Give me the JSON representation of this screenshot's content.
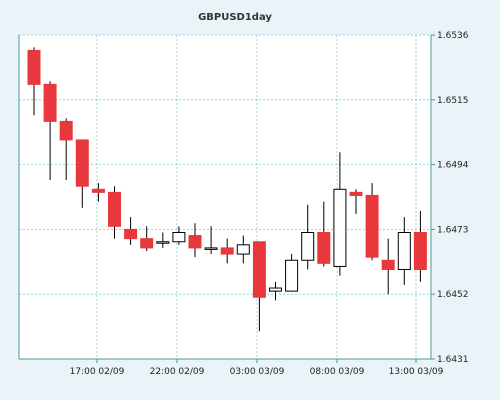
{
  "chart_data": {
    "type": "candlestick",
    "title": "GBPUSD1day",
    "y_axis_position": "right",
    "ylim": [
      1.6431,
      1.6536
    ],
    "y_ticks": [
      "1.6536",
      "1.6515",
      "1.6494",
      "1.6473",
      "1.6452",
      "1.6431"
    ],
    "x_ticks": [
      "17:00 02/09",
      "22:00 02/09",
      "03:00 03/09",
      "08:00 03/09",
      "13:00 03/09"
    ],
    "grid": true,
    "colors": {
      "up": "#ffffff",
      "down": "#e8383d",
      "grid": "#7fcac8",
      "background": "#ffffff",
      "axis": "#4a9a98"
    },
    "candles": [
      {
        "open": 1.6531,
        "high": 1.6532,
        "low": 1.651,
        "close": 1.652
      },
      {
        "open": 1.652,
        "high": 1.6521,
        "low": 1.6489,
        "close": 1.6508
      },
      {
        "open": 1.6508,
        "high": 1.6509,
        "low": 1.6489,
        "close": 1.6502
      },
      {
        "open": 1.6502,
        "high": 1.6502,
        "low": 1.648,
        "close": 1.6487
      },
      {
        "open": 1.6486,
        "high": 1.6488,
        "low": 1.6482,
        "close": 1.6485
      },
      {
        "open": 1.6485,
        "high": 1.6487,
        "low": 1.647,
        "close": 1.6474
      },
      {
        "open": 1.6473,
        "high": 1.6477,
        "low": 1.6468,
        "close": 1.647
      },
      {
        "open": 1.647,
        "high": 1.6474,
        "low": 1.6466,
        "close": 1.6467
      },
      {
        "open": 1.6469,
        "high": 1.6472,
        "low": 1.6467,
        "close": 1.6469
      },
      {
        "open": 1.6469,
        "high": 1.6474,
        "low": 1.6468,
        "close": 1.6472
      },
      {
        "open": 1.6471,
        "high": 1.6475,
        "low": 1.6464,
        "close": 1.6467
      },
      {
        "open": 1.6467,
        "high": 1.6474,
        "low": 1.6465,
        "close": 1.6467
      },
      {
        "open": 1.6467,
        "high": 1.647,
        "low": 1.6462,
        "close": 1.6465
      },
      {
        "open": 1.6465,
        "high": 1.6471,
        "low": 1.6462,
        "close": 1.6468
      },
      {
        "open": 1.6469,
        "high": 1.6469,
        "low": 1.644,
        "close": 1.6451
      },
      {
        "open": 1.6453,
        "high": 1.6456,
        "low": 1.645,
        "close": 1.6454
      },
      {
        "open": 1.6453,
        "high": 1.6465,
        "low": 1.6453,
        "close": 1.6463
      },
      {
        "open": 1.6463,
        "high": 1.6481,
        "low": 1.646,
        "close": 1.6472
      },
      {
        "open": 1.6472,
        "high": 1.6482,
        "low": 1.6461,
        "close": 1.6462
      },
      {
        "open": 1.6461,
        "high": 1.6498,
        "low": 1.6458,
        "close": 1.6486
      },
      {
        "open": 1.6485,
        "high": 1.6486,
        "low": 1.6478,
        "close": 1.6484
      },
      {
        "open": 1.6484,
        "high": 1.6488,
        "low": 1.6463,
        "close": 1.6464
      },
      {
        "open": 1.6463,
        "high": 1.647,
        "low": 1.6452,
        "close": 1.646
      },
      {
        "open": 1.646,
        "high": 1.6477,
        "low": 1.6455,
        "close": 1.6472
      },
      {
        "open": 1.6472,
        "high": 1.6479,
        "low": 1.6456,
        "close": 1.646
      }
    ]
  }
}
